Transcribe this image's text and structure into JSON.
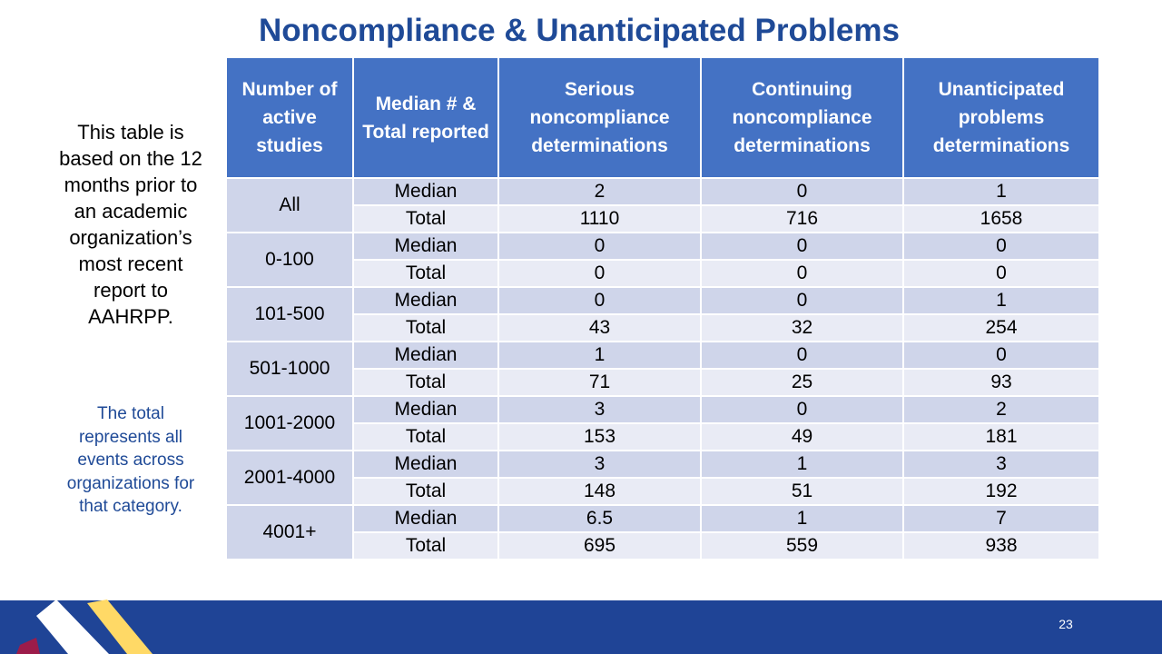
{
  "title": "Noncompliance & Unanticipated Problems",
  "left_note": "This table is based on the 12 months prior to an academic organization’s most recent report to AAHRPP.",
  "left_note2": "The total represents all events across organizations for that category.",
  "page_number": "23",
  "colors": {
    "title": "#1f4a97",
    "header_bg": "#4472c4",
    "row_median_bg": "#cfd5ea",
    "row_total_bg": "#e9ebf5",
    "footer_bar": "#1f4496",
    "logo_yellow": "#ffd966",
    "logo_crimson": "#9c1c4a"
  },
  "table": {
    "headers": [
      "Number of active studies",
      "Median # & Total reported",
      "Serious noncompliance determinations",
      "Continuing noncompliance determinations",
      "Unanticipated problems determinations"
    ],
    "groups": [
      {
        "label": "All",
        "rows": [
          {
            "type": "Median",
            "values": [
              "2",
              "0",
              "1"
            ]
          },
          {
            "type": "Total",
            "values": [
              "1110",
              "716",
              "1658"
            ]
          }
        ]
      },
      {
        "label": "0-100",
        "rows": [
          {
            "type": "Median",
            "values": [
              "0",
              "0",
              "0"
            ]
          },
          {
            "type": "Total",
            "values": [
              "0",
              "0",
              "0"
            ]
          }
        ]
      },
      {
        "label": "101-500",
        "rows": [
          {
            "type": "Median",
            "values": [
              "0",
              "0",
              "1"
            ]
          },
          {
            "type": "Total",
            "values": [
              "43",
              "32",
              "254"
            ]
          }
        ]
      },
      {
        "label": "501-1000",
        "rows": [
          {
            "type": "Median",
            "values": [
              "1",
              "0",
              "0"
            ]
          },
          {
            "type": "Total",
            "values": [
              "71",
              "25",
              "93"
            ]
          }
        ]
      },
      {
        "label": "1001-2000",
        "rows": [
          {
            "type": "Median",
            "values": [
              "3",
              "0",
              "2"
            ]
          },
          {
            "type": "Total",
            "values": [
              "153",
              "49",
              "181"
            ]
          }
        ]
      },
      {
        "label": "2001-4000",
        "rows": [
          {
            "type": "Median",
            "values": [
              "3",
              "1",
              "3"
            ]
          },
          {
            "type": "Total",
            "values": [
              "148",
              "51",
              "192"
            ]
          }
        ]
      },
      {
        "label": "4001+",
        "rows": [
          {
            "type": "Median",
            "values": [
              "6.5",
              "1",
              "7"
            ]
          },
          {
            "type": "Total",
            "values": [
              "695",
              "559",
              "938"
            ]
          }
        ]
      }
    ]
  }
}
